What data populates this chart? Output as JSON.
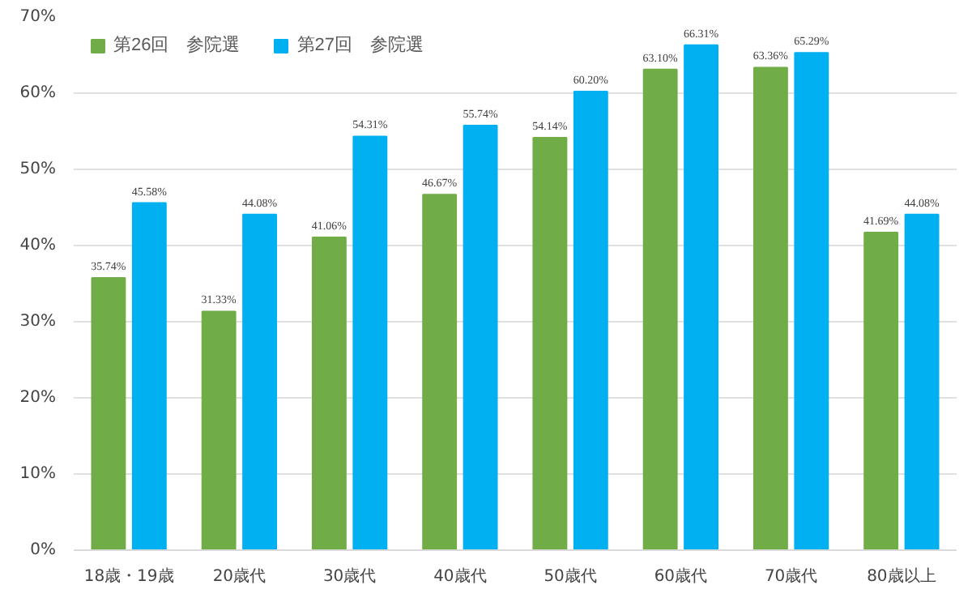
{
  "chart_data": {
    "type": "bar",
    "categories": [
      "18歳・19歳",
      "20歳代",
      "30歳代",
      "40歳代",
      "50歳代",
      "60歳代",
      "70歳代",
      "80歳以上"
    ],
    "series": [
      {
        "name": "第26回　参院選",
        "color": "#70ad47",
        "values": [
          35.74,
          31.33,
          41.06,
          46.67,
          54.14,
          63.1,
          63.36,
          41.69
        ],
        "value_labels": [
          "35.74%",
          "31.33%",
          "41.06%",
          "46.67%",
          "54.14%",
          "63.10%",
          "63.36%",
          "41.69%"
        ]
      },
      {
        "name": "第27回　参院選",
        "color": "#00b0f0",
        "values": [
          45.58,
          44.08,
          54.31,
          55.74,
          60.2,
          66.31,
          65.29,
          44.08
        ],
        "value_labels": [
          "45.58%",
          "44.08%",
          "54.31%",
          "55.74%",
          "60.20%",
          "66.31%",
          "65.29%",
          "44.08%"
        ]
      }
    ],
    "ylim": [
      0,
      70
    ],
    "yticks": [
      {
        "value": 0,
        "label": "0%"
      },
      {
        "value": 10,
        "label": "10%"
      },
      {
        "value": 20,
        "label": "20%"
      },
      {
        "value": 30,
        "label": "30%"
      },
      {
        "value": 40,
        "label": "40%"
      },
      {
        "value": 50,
        "label": "50%"
      },
      {
        "value": 60,
        "label": "60%"
      },
      {
        "value": 70,
        "label": "70%"
      }
    ],
    "grid": "y",
    "legend": "top left"
  }
}
